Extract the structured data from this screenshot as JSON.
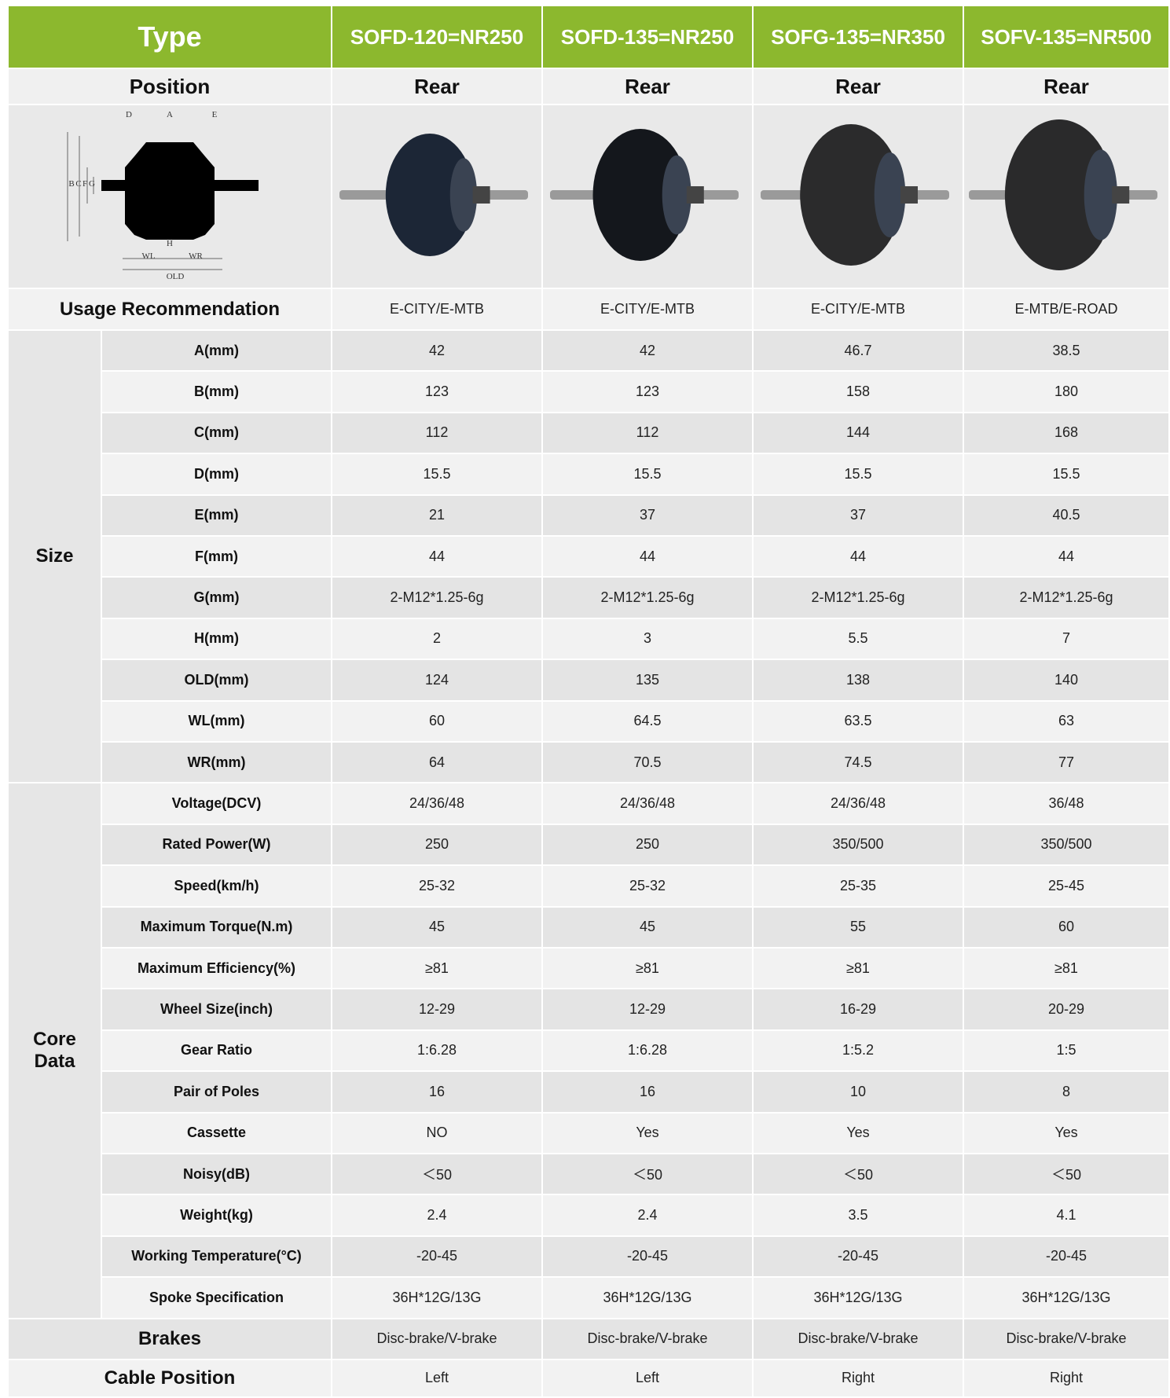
{
  "header": {
    "label": "Type",
    "models": [
      "SOFD-120=NR250",
      "SOFD-135=NR250",
      "SOFG-135=NR350",
      "SOFV-135=NR500"
    ]
  },
  "position": {
    "label": "Position",
    "values": [
      "Rear",
      "Rear",
      "Rear",
      "Rear"
    ]
  },
  "diagram": {
    "labels": [
      "D",
      "A",
      "E",
      "B",
      "C",
      "F",
      "G",
      "H",
      "WL",
      "WR",
      "OLD"
    ]
  },
  "usage": {
    "label": "Usage Recommendation",
    "values": [
      "E-CITY/E-MTB",
      "E-CITY/E-MTB",
      "E-CITY/E-MTB",
      "E-MTB/E-ROAD"
    ]
  },
  "groups": [
    {
      "label": "Size",
      "rows": [
        {
          "label": "A(mm)",
          "values": [
            "42",
            "42",
            "46.7",
            "38.5"
          ]
        },
        {
          "label": "B(mm)",
          "values": [
            "123",
            "123",
            "158",
            "180"
          ]
        },
        {
          "label": "C(mm)",
          "values": [
            "112",
            "112",
            "144",
            "168"
          ]
        },
        {
          "label": "D(mm)",
          "values": [
            "15.5",
            "15.5",
            "15.5",
            "15.5"
          ]
        },
        {
          "label": "E(mm)",
          "values": [
            "21",
            "37",
            "37",
            "40.5"
          ]
        },
        {
          "label": "F(mm)",
          "values": [
            "44",
            "44",
            "44",
            "44"
          ]
        },
        {
          "label": "G(mm)",
          "values": [
            "2-M12*1.25-6g",
            "2-M12*1.25-6g",
            "2-M12*1.25-6g",
            "2-M12*1.25-6g"
          ]
        },
        {
          "label": "H(mm)",
          "values": [
            "2",
            "3",
            "5.5",
            "7"
          ]
        },
        {
          "label": "OLD(mm)",
          "values": [
            "124",
            "135",
            "138",
            "140"
          ]
        },
        {
          "label": "WL(mm)",
          "values": [
            "60",
            "64.5",
            "63.5",
            "63"
          ]
        },
        {
          "label": "WR(mm)",
          "values": [
            "64",
            "70.5",
            "74.5",
            "77"
          ]
        }
      ]
    },
    {
      "label": "Core Data",
      "rows": [
        {
          "label": "Voltage(DCV)",
          "values": [
            "24/36/48",
            "24/36/48",
            "24/36/48",
            "36/48"
          ]
        },
        {
          "label": "Rated Power(W)",
          "values": [
            "250",
            "250",
            "350/500",
            "350/500"
          ]
        },
        {
          "label": "Speed(km/h)",
          "values": [
            "25-32",
            "25-32",
            "25-35",
            "25-45"
          ]
        },
        {
          "label": "Maximum Torque(N.m)",
          "values": [
            "45",
            "45",
            "55",
            "60"
          ]
        },
        {
          "label": "Maximum Efficiency(%)",
          "values": [
            "≥81",
            "≥81",
            "≥81",
            "≥81"
          ]
        },
        {
          "label": "Wheel Size(inch)",
          "values": [
            "12-29",
            "12-29",
            "16-29",
            "20-29"
          ]
        },
        {
          "label": "Gear Ratio",
          "values": [
            "1:6.28",
            "1:6.28",
            "1:5.2",
            "1:5"
          ]
        },
        {
          "label": "Pair of Poles",
          "values": [
            "16",
            "16",
            "10",
            "8"
          ]
        },
        {
          "label": "Cassette",
          "values": [
            "NO",
            "Yes",
            "Yes",
            "Yes"
          ]
        },
        {
          "label": "Noisy(dB)",
          "values": [
            "＜50",
            "＜50",
            "＜50",
            "＜50"
          ]
        },
        {
          "label": "Weight(kg)",
          "values": [
            "2.4",
            "2.4",
            "3.5",
            "4.1"
          ]
        },
        {
          "label": "Working Temperature(°C)",
          "values": [
            "-20-45",
            "-20-45",
            "-20-45",
            "-20-45"
          ]
        },
        {
          "label": "Spoke Specification",
          "values": [
            "36H*12G/13G",
            "36H*12G/13G",
            "36H*12G/13G",
            "36H*12G/13G"
          ]
        }
      ]
    }
  ],
  "brakes": {
    "label": "Brakes",
    "values": [
      "Disc-brake/V-brake",
      "Disc-brake/V-brake",
      "Disc-brake/V-brake",
      "Disc-brake/V-brake"
    ]
  },
  "cable": {
    "label": "Cable Position",
    "values": [
      "Left",
      "Left",
      "Right",
      "Right"
    ]
  }
}
